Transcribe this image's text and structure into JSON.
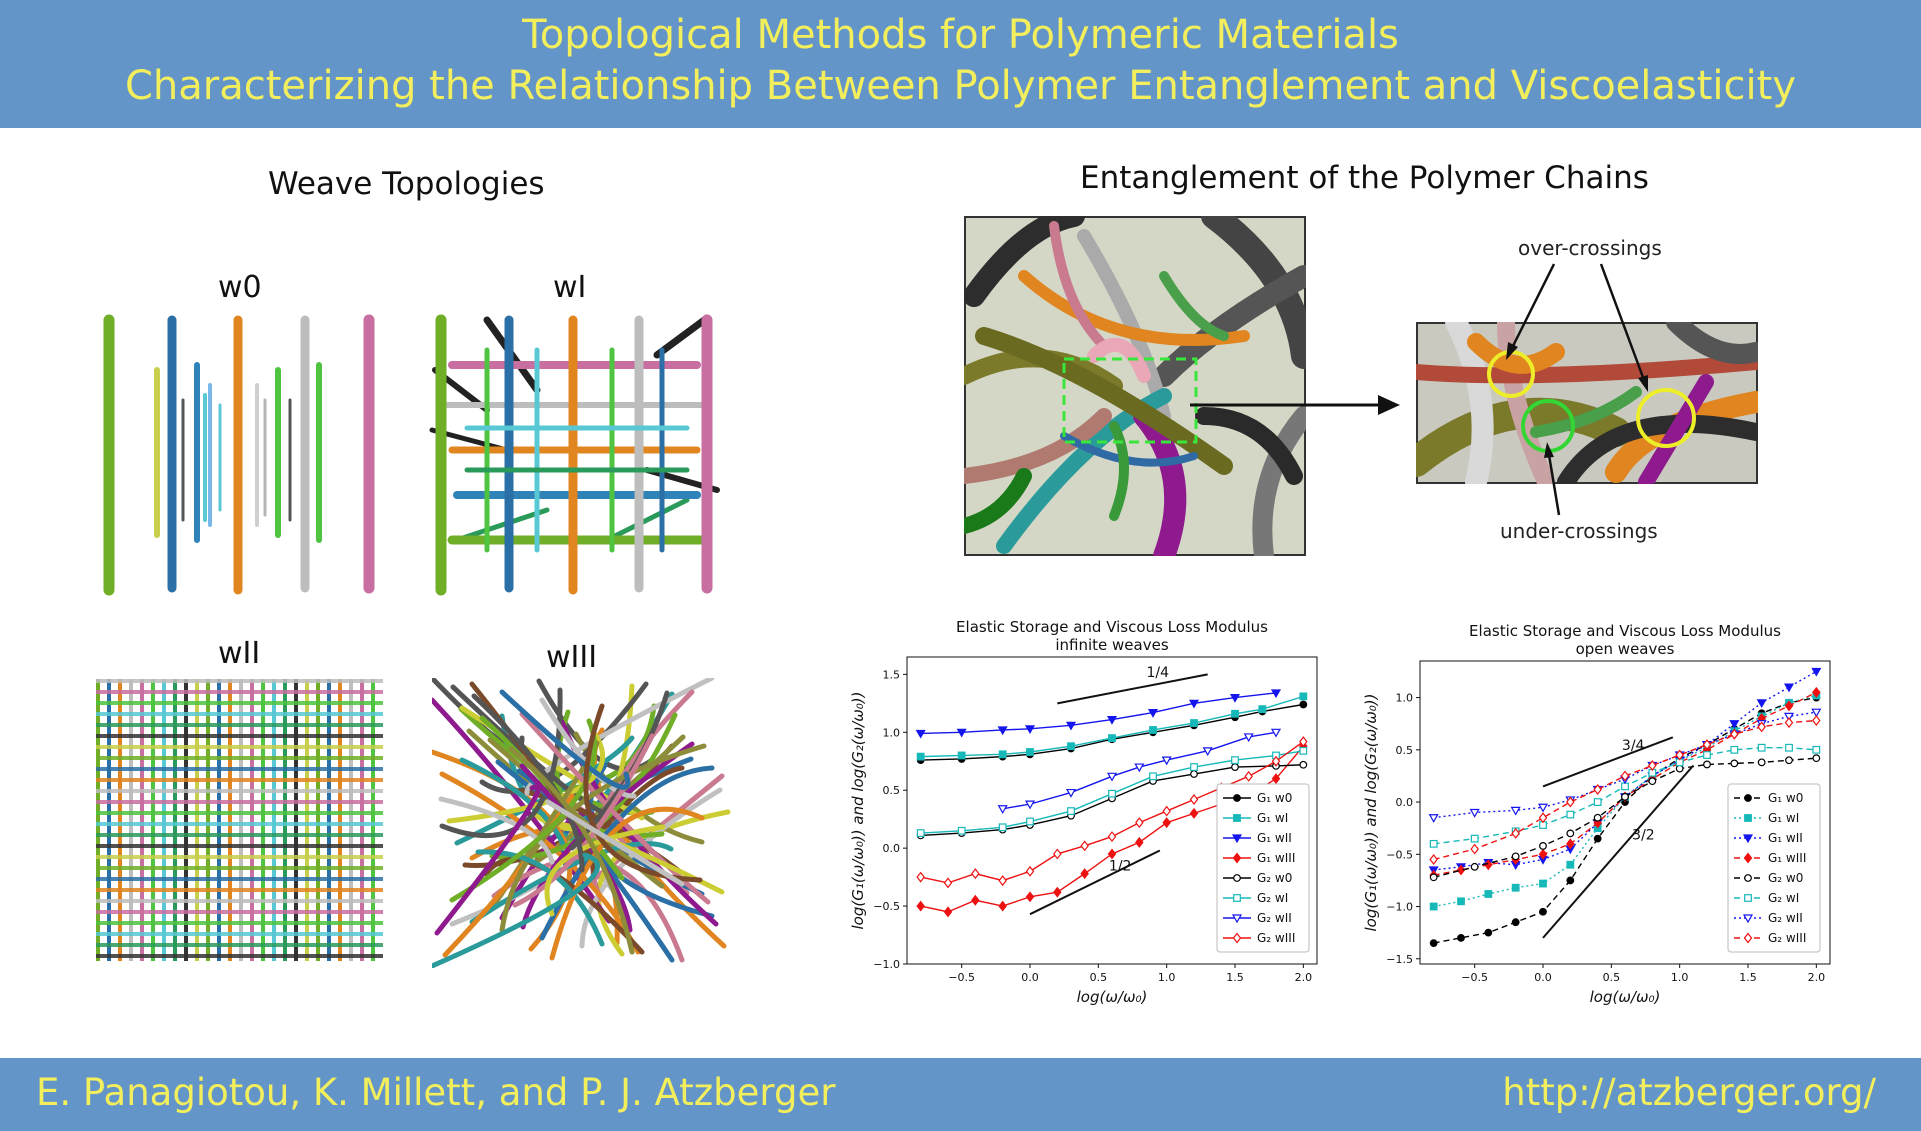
{
  "header": {
    "title": "Topological Methods for Polymeric Materials",
    "subtitle": "Characterizing the Relationship Between Polymer Entanglement and Viscoelasticity"
  },
  "footer": {
    "authors": "E. Panagiotou, K. Millett, and P. J. Atzberger",
    "url": "http://atzberger.org/"
  },
  "weaves": {
    "title": "Weave Topologies",
    "labels": [
      "w0",
      "wI",
      "wII",
      "wIII"
    ]
  },
  "entanglement": {
    "title": "Entanglement of the Polymer Chains",
    "over_label": "over-crossings",
    "under_label": "under-crossings"
  },
  "colors": {
    "banner": "#6495c9",
    "banner_text": "#f3ee5c"
  },
  "chart_data": [
    {
      "type": "line",
      "title": "Elastic Storage and Viscous Loss Modulus",
      "subtitle": "infinite weaves",
      "xlabel": "log(ω/ω₀)",
      "ylabel": "log(G₁(ω/ω₀)) and log(G₂(ω/ω₀))",
      "xlim": [
        -0.9,
        2.1
      ],
      "ylim": [
        -1.0,
        1.65
      ],
      "xticks": [
        "−0.5",
        "0.0",
        "0.5",
        "1.0",
        "1.5",
        "2.0"
      ],
      "yticks": [
        "−1.0",
        "−0.5",
        "0.0",
        "0.5",
        "1.0",
        "1.5"
      ],
      "legend_position": "lower-right",
      "annotations": [
        {
          "text": "1/4",
          "line": [
            [
              0.2,
              1.25
            ],
            [
              1.3,
              1.5
            ]
          ]
        },
        {
          "text": "1/2",
          "line": [
            [
              0.0,
              -0.57
            ],
            [
              0.95,
              -0.02
            ]
          ]
        }
      ],
      "series": [
        {
          "name": "G₁ w0",
          "color": "#000000",
          "marker": "circle-filled",
          "dash": "solid",
          "x": [
            -0.8,
            -0.5,
            -0.2,
            0.0,
            0.3,
            0.6,
            0.9,
            1.2,
            1.5,
            1.7,
            2.0
          ],
          "y": [
            0.76,
            0.77,
            0.79,
            0.81,
            0.86,
            0.94,
            1.0,
            1.06,
            1.13,
            1.18,
            1.24
          ]
        },
        {
          "name": "G₁ wI",
          "color": "#16b8b8",
          "marker": "square-filled",
          "dash": "solid",
          "x": [
            -0.8,
            -0.5,
            -0.2,
            0.0,
            0.3,
            0.6,
            0.9,
            1.2,
            1.5,
            1.7,
            2.0
          ],
          "y": [
            0.79,
            0.8,
            0.81,
            0.83,
            0.88,
            0.95,
            1.02,
            1.08,
            1.16,
            1.2,
            1.31
          ]
        },
        {
          "name": "G₁ wII",
          "color": "#1515ee",
          "marker": "triangle-down-filled",
          "dash": "solid",
          "x": [
            -0.8,
            -0.5,
            -0.2,
            0.0,
            0.3,
            0.6,
            0.9,
            1.2,
            1.5,
            1.8
          ],
          "y": [
            0.99,
            1.0,
            1.02,
            1.03,
            1.06,
            1.11,
            1.17,
            1.25,
            1.3,
            1.34
          ]
        },
        {
          "name": "G₁ wIII",
          "color": "#ee1111",
          "marker": "diamond-filled",
          "dash": "solid",
          "x": [
            -0.8,
            -0.6,
            -0.4,
            -0.2,
            0.0,
            0.2,
            0.4,
            0.6,
            0.8,
            1.0,
            1.2,
            1.4,
            1.6,
            1.8,
            2.0
          ],
          "y": [
            -0.5,
            -0.55,
            -0.45,
            -0.5,
            -0.42,
            -0.38,
            -0.22,
            -0.05,
            0.05,
            0.22,
            0.3,
            0.38,
            0.45,
            0.6,
            0.88
          ]
        },
        {
          "name": "G₂ w0",
          "color": "#000000",
          "marker": "circle-open",
          "dash": "solid",
          "x": [
            -0.8,
            -0.5,
            -0.2,
            0.0,
            0.3,
            0.6,
            0.9,
            1.2,
            1.5,
            1.8,
            2.0
          ],
          "y": [
            0.11,
            0.13,
            0.16,
            0.2,
            0.28,
            0.43,
            0.58,
            0.64,
            0.7,
            0.71,
            0.72
          ]
        },
        {
          "name": "G₂ wI",
          "color": "#16b8b8",
          "marker": "square-open",
          "dash": "solid",
          "x": [
            -0.8,
            -0.5,
            -0.2,
            0.0,
            0.3,
            0.6,
            0.9,
            1.2,
            1.5,
            1.8,
            2.0
          ],
          "y": [
            0.13,
            0.15,
            0.18,
            0.23,
            0.32,
            0.47,
            0.62,
            0.7,
            0.76,
            0.8,
            0.84
          ]
        },
        {
          "name": "G₂ wII",
          "color": "#1515ee",
          "marker": "triangle-down-open",
          "dash": "solid",
          "x": [
            -0.2,
            0.0,
            0.3,
            0.6,
            0.8,
            1.0,
            1.3,
            1.6,
            1.8
          ],
          "y": [
            0.34,
            0.38,
            0.48,
            0.62,
            0.7,
            0.76,
            0.84,
            0.96,
            1.0
          ]
        },
        {
          "name": "G₂ wIII",
          "color": "#ee1111",
          "marker": "diamond-open",
          "dash": "solid",
          "x": [
            -0.8,
            -0.6,
            -0.4,
            -0.2,
            0.0,
            0.2,
            0.4,
            0.6,
            0.8,
            1.0,
            1.2,
            1.4,
            1.6,
            1.8,
            2.0
          ],
          "y": [
            -0.25,
            -0.3,
            -0.22,
            -0.28,
            -0.2,
            -0.05,
            0.02,
            0.1,
            0.22,
            0.32,
            0.42,
            0.52,
            0.62,
            0.75,
            0.92
          ]
        }
      ]
    },
    {
      "type": "line",
      "title": "Elastic Storage and Viscous Loss Modulus",
      "subtitle": "open weaves",
      "xlabel": "log(ω/ω₀)",
      "ylabel": "log(G₁(ω/ω₀)) and log(G₂(ω/ω₀))",
      "xlim": [
        -0.9,
        2.1
      ],
      "ylim": [
        -1.55,
        1.35
      ],
      "xticks": [
        "−0.5",
        "0.0",
        "0.5",
        "1.0",
        "1.5",
        "2.0"
      ],
      "yticks": [
        "−1.5",
        "−1.0",
        "−0.5",
        "0.0",
        "0.5",
        "1.0"
      ],
      "legend_position": "lower-right",
      "annotations": [
        {
          "text": "3/4",
          "line": [
            [
              0.0,
              0.15
            ],
            [
              0.95,
              0.62
            ]
          ]
        },
        {
          "text": "3/2",
          "line": [
            [
              0.0,
              -1.3
            ],
            [
              1.1,
              0.35
            ]
          ]
        }
      ],
      "series": [
        {
          "name": "G₁ w0",
          "color": "#000000",
          "marker": "circle-filled",
          "dash": "dashed",
          "x": [
            -0.8,
            -0.6,
            -0.4,
            -0.2,
            0.0,
            0.2,
            0.4,
            0.6,
            0.8,
            1.0,
            1.2,
            1.4,
            1.6,
            1.8,
            2.0
          ],
          "y": [
            -1.35,
            -1.3,
            -1.25,
            -1.15,
            -1.05,
            -0.75,
            -0.35,
            0.0,
            0.25,
            0.42,
            0.55,
            0.7,
            0.85,
            0.95,
            1.0
          ]
        },
        {
          "name": "G₁ wI",
          "color": "#16b8b8",
          "marker": "square-filled",
          "dash": "dotted",
          "x": [
            -0.8,
            -0.6,
            -0.4,
            -0.2,
            0.0,
            0.2,
            0.4,
            0.6,
            0.8,
            1.0,
            1.2,
            1.4,
            1.6,
            1.8,
            2.0
          ],
          "y": [
            -1.0,
            -0.95,
            -0.88,
            -0.82,
            -0.78,
            -0.6,
            -0.25,
            0.05,
            0.25,
            0.4,
            0.52,
            0.68,
            0.82,
            0.95,
            1.02
          ]
        },
        {
          "name": "G₁ wII",
          "color": "#1515ee",
          "marker": "triangle-down-filled",
          "dash": "dotted",
          "x": [
            -0.8,
            -0.6,
            -0.4,
            -0.2,
            0.0,
            0.2,
            0.4,
            0.6,
            0.8,
            1.0,
            1.2,
            1.4,
            1.6,
            1.8,
            2.0
          ],
          "y": [
            -0.65,
            -0.62,
            -0.58,
            -0.6,
            -0.55,
            -0.45,
            -0.2,
            0.05,
            0.25,
            0.4,
            0.55,
            0.75,
            0.95,
            1.1,
            1.25
          ]
        },
        {
          "name": "G₁ wIII",
          "color": "#ee1111",
          "marker": "diamond-filled",
          "dash": "dashed",
          "x": [
            -0.8,
            -0.6,
            -0.4,
            -0.2,
            0.0,
            0.2,
            0.4,
            0.6,
            0.8,
            1.0,
            1.2,
            1.4,
            1.6,
            1.8,
            2.0
          ],
          "y": [
            -0.7,
            -0.65,
            -0.6,
            -0.55,
            -0.5,
            -0.4,
            -0.2,
            0.05,
            0.22,
            0.38,
            0.5,
            0.65,
            0.8,
            0.92,
            1.05
          ]
        },
        {
          "name": "G₂ w0",
          "color": "#000000",
          "marker": "circle-open",
          "dash": "dashed",
          "x": [
            -0.8,
            -0.5,
            -0.2,
            0.0,
            0.2,
            0.4,
            0.6,
            0.8,
            1.0,
            1.2,
            1.4,
            1.6,
            1.8,
            2.0
          ],
          "y": [
            -0.72,
            -0.62,
            -0.52,
            -0.42,
            -0.3,
            -0.15,
            0.05,
            0.2,
            0.32,
            0.36,
            0.37,
            0.38,
            0.4,
            0.42
          ]
        },
        {
          "name": "G₂ wI",
          "color": "#16b8b8",
          "marker": "square-open",
          "dash": "dashed",
          "x": [
            -0.8,
            -0.5,
            -0.2,
            0.0,
            0.2,
            0.4,
            0.6,
            0.8,
            1.0,
            1.2,
            1.4,
            1.6,
            1.8,
            2.0
          ],
          "y": [
            -0.4,
            -0.35,
            -0.28,
            -0.22,
            -0.12,
            0.0,
            0.15,
            0.28,
            0.38,
            0.45,
            0.5,
            0.52,
            0.52,
            0.5
          ]
        },
        {
          "name": "G₂ wII",
          "color": "#1515ee",
          "marker": "triangle-down-open",
          "dash": "dotted",
          "x": [
            -0.8,
            -0.5,
            -0.2,
            0.0,
            0.2,
            0.4,
            0.6,
            0.8,
            1.0,
            1.2,
            1.4,
            1.6,
            1.8,
            2.0
          ],
          "y": [
            -0.15,
            -0.1,
            -0.08,
            -0.05,
            0.02,
            0.12,
            0.22,
            0.35,
            0.45,
            0.55,
            0.65,
            0.75,
            0.82,
            0.86
          ]
        },
        {
          "name": "G₂ wIII",
          "color": "#ee1111",
          "marker": "diamond-open",
          "dash": "dashed",
          "x": [
            -0.8,
            -0.5,
            -0.2,
            0.0,
            0.2,
            0.4,
            0.6,
            0.8,
            1.0,
            1.2,
            1.4,
            1.6,
            1.8,
            2.0
          ],
          "y": [
            -0.55,
            -0.45,
            -0.3,
            -0.15,
            0.0,
            0.12,
            0.25,
            0.35,
            0.45,
            0.55,
            0.65,
            0.72,
            0.76,
            0.78
          ]
        }
      ]
    }
  ]
}
